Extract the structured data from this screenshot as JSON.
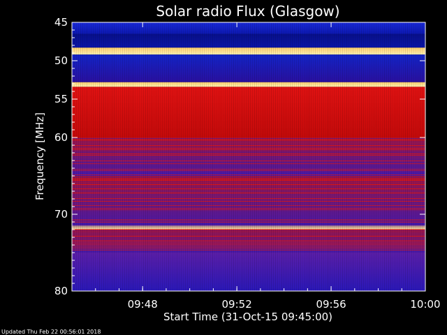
{
  "chart_data": {
    "type": "heatmap",
    "title": "Solar radio Flux (Glasgow)",
    "xlabel": "Start Time (31-Oct-15 09:45:00)",
    "ylabel": "Frequency [MHz]",
    "x_unit": "time (HH:MM)",
    "xlim": [
      "09:45:00",
      "10:00:00"
    ],
    "ylim": [
      45,
      80
    ],
    "y_inverted": true,
    "grid": false,
    "x_ticks": [
      "09:48",
      "09:52",
      "09:56",
      "10:00"
    ],
    "y_ticks": [
      45,
      50,
      55,
      60,
      70,
      80
    ],
    "colormap": "blue-red-yellow (low to high flux)",
    "bands": [
      {
        "from": 45.0,
        "to": 46.5,
        "level": "low-blue"
      },
      {
        "from": 46.5,
        "to": 48.3,
        "level": "dark-blue"
      },
      {
        "from": 48.3,
        "to": 49.2,
        "level": "saturated-yellow"
      },
      {
        "from": 49.2,
        "to": 52.8,
        "level": "mid-blue"
      },
      {
        "from": 52.8,
        "to": 53.4,
        "level": "saturated-yellow"
      },
      {
        "from": 53.4,
        "to": 60.0,
        "level": "high-red"
      },
      {
        "from": 60.0,
        "to": 65.0,
        "level": "red-blue-mix"
      },
      {
        "from": 65.0,
        "to": 71.5,
        "level": "red-blue-mix"
      },
      {
        "from": 71.5,
        "to": 72.0,
        "level": "saturated-yellow"
      },
      {
        "from": 72.0,
        "to": 75.0,
        "level": "red-blue-mix"
      },
      {
        "from": 75.0,
        "to": 80.0,
        "level": "purple-blue"
      }
    ],
    "colors": {
      "low": "#1020d0",
      "mid": "#5a1fa0",
      "high": "#e01010",
      "peak": "#ffe080"
    }
  },
  "footer": {
    "updated": "Updated Thu Feb 22 00:56:01 2018"
  }
}
